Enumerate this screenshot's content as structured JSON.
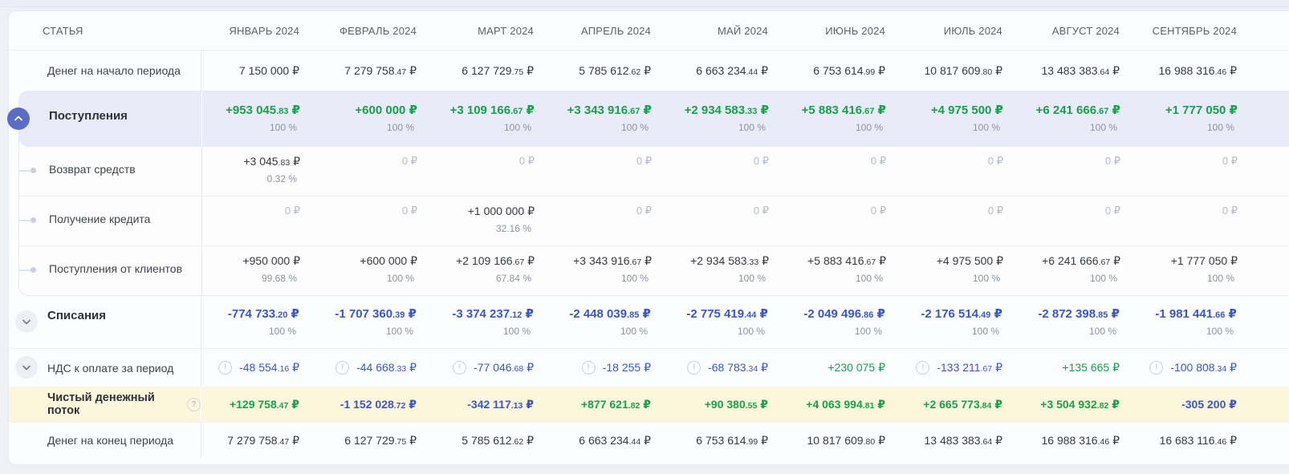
{
  "page": {
    "title_column": "СТАТЬЯ",
    "currency_symbol": "₽"
  },
  "columns": [
    "ЯНВАРЬ 2024",
    "ФЕВРАЛЬ 2024",
    "МАРТ 2024",
    "АПРЕЛЬ 2024",
    "МАЙ 2024",
    "ИЮНЬ 2024",
    "ИЮЛЬ 2024",
    "АВГУСТ 2024",
    "СЕНТЯБРЬ 2024"
  ],
  "colors": {
    "green": "#18a04b",
    "blue": "#3b57c4",
    "dark": "#363a40",
    "gray": "#b4bac6",
    "income_row_bg": "#e9ecf8",
    "net_row_bg": "#fcf6dd",
    "toggle_indigo": "#5b6cc5"
  },
  "rows": [
    {
      "id": "opening-balance",
      "label": "Денег на начало периода",
      "type": "plain",
      "cells": [
        {
          "a": "7 150 000 ₽",
          "c": "dark"
        },
        {
          "a": "7 279 758.47 ₽",
          "c": "dark"
        },
        {
          "a": "6 127 729.75 ₽",
          "c": "dark"
        },
        {
          "a": "5 785 612.62 ₽",
          "c": "dark"
        },
        {
          "a": "6 663 234.44 ₽",
          "c": "dark"
        },
        {
          "a": "6 753 614.99 ₽",
          "c": "dark"
        },
        {
          "a": "10 817 609.80 ₽",
          "c": "dark"
        },
        {
          "a": "13 483 383.64 ₽",
          "c": "dark"
        },
        {
          "a": "16 988 316.46 ₽",
          "c": "dark"
        }
      ]
    },
    {
      "id": "income",
      "label": "Поступления",
      "type": "group-expanded",
      "toggle_icon": "chevron-up-icon",
      "cells": [
        {
          "a": "+953 045.83 ₽",
          "p": "100 %",
          "c": "green"
        },
        {
          "a": "+600 000 ₽",
          "p": "100 %",
          "c": "green"
        },
        {
          "a": "+3 109 166.67 ₽",
          "p": "100 %",
          "c": "green"
        },
        {
          "a": "+3 343 916.67 ₽",
          "p": "100 %",
          "c": "green"
        },
        {
          "a": "+2 934 583.33 ₽",
          "p": "100 %",
          "c": "green"
        },
        {
          "a": "+5 883 416.67 ₽",
          "p": "100 %",
          "c": "green"
        },
        {
          "a": "+4 975 500 ₽",
          "p": "100 %",
          "c": "green"
        },
        {
          "a": "+6 241 666.67 ₽",
          "p": "100 %",
          "c": "green"
        },
        {
          "a": "+1 777 050 ₽",
          "p": "100 %",
          "c": "green"
        }
      ],
      "children": [
        {
          "id": "refunds",
          "label": "Возврат средств",
          "cells": [
            {
              "a": "+3 045.83 ₽",
              "p": "0.32 %",
              "c": "dark"
            },
            {
              "a": "0 ₽",
              "c": "gray"
            },
            {
              "a": "0 ₽",
              "c": "gray"
            },
            {
              "a": "0 ₽",
              "c": "gray"
            },
            {
              "a": "0 ₽",
              "c": "gray"
            },
            {
              "a": "0 ₽",
              "c": "gray"
            },
            {
              "a": "0 ₽",
              "c": "gray"
            },
            {
              "a": "0 ₽",
              "c": "gray"
            },
            {
              "a": "0 ₽",
              "c": "gray"
            }
          ]
        },
        {
          "id": "loan-received",
          "label": "Получение кредита",
          "cells": [
            {
              "a": "0 ₽",
              "c": "gray"
            },
            {
              "a": "0 ₽",
              "c": "gray"
            },
            {
              "a": "+1 000 000 ₽",
              "p": "32.16 %",
              "c": "dark"
            },
            {
              "a": "0 ₽",
              "c": "gray"
            },
            {
              "a": "0 ₽",
              "c": "gray"
            },
            {
              "a": "0 ₽",
              "c": "gray"
            },
            {
              "a": "0 ₽",
              "c": "gray"
            },
            {
              "a": "0 ₽",
              "c": "gray"
            },
            {
              "a": "0 ₽",
              "c": "gray"
            }
          ]
        },
        {
          "id": "client-income",
          "label": "Поступления от клиентов",
          "cells": [
            {
              "a": "+950 000 ₽",
              "p": "99.68 %",
              "c": "dark"
            },
            {
              "a": "+600 000 ₽",
              "p": "100 %",
              "c": "dark"
            },
            {
              "a": "+2 109 166.67 ₽",
              "p": "67.84 %",
              "c": "dark"
            },
            {
              "a": "+3 343 916.67 ₽",
              "p": "100 %",
              "c": "dark"
            },
            {
              "a": "+2 934 583.33 ₽",
              "p": "100 %",
              "c": "dark"
            },
            {
              "a": "+5 883 416.67 ₽",
              "p": "100 %",
              "c": "dark"
            },
            {
              "a": "+4 975 500 ₽",
              "p": "100 %",
              "c": "dark"
            },
            {
              "a": "+6 241 666.67 ₽",
              "p": "100 %",
              "c": "dark"
            },
            {
              "a": "+1 777 050 ₽",
              "p": "100 %",
              "c": "dark"
            }
          ]
        }
      ]
    },
    {
      "id": "expenses",
      "label": "Списания",
      "type": "group-collapsed",
      "toggle_icon": "chevron-down-icon",
      "cells": [
        {
          "a": "-774 733.20 ₽",
          "p": "100 %",
          "c": "blue"
        },
        {
          "a": "-1 707 360.39 ₽",
          "p": "100 %",
          "c": "blue"
        },
        {
          "a": "-3 374 237.12 ₽",
          "p": "100 %",
          "c": "blue"
        },
        {
          "a": "-2 448 039.85 ₽",
          "p": "100 %",
          "c": "blue"
        },
        {
          "a": "-2 775 419.44 ₽",
          "p": "100 %",
          "c": "blue"
        },
        {
          "a": "-2 049 496.86 ₽",
          "p": "100 %",
          "c": "blue"
        },
        {
          "a": "-2 176 514.49 ₽",
          "p": "100 %",
          "c": "blue"
        },
        {
          "a": "-2 872 398.85 ₽",
          "p": "100 %",
          "c": "blue"
        },
        {
          "a": "-1 981 441.66 ₽",
          "p": "100 %",
          "c": "blue"
        }
      ]
    },
    {
      "id": "vat-payable",
      "label": "НДС к оплате за период",
      "type": "vat",
      "toggle_icon": "chevron-down-icon",
      "cells": [
        {
          "a": "-48 554.16 ₽",
          "c": "blue",
          "w": true
        },
        {
          "a": "-44 668.33 ₽",
          "c": "blue",
          "w": true
        },
        {
          "a": "-77 046.68 ₽",
          "c": "blue",
          "w": true
        },
        {
          "a": "-18 255 ₽",
          "c": "blue",
          "w": true
        },
        {
          "a": "-68 783.34 ₽",
          "c": "blue",
          "w": true
        },
        {
          "a": "+230 075 ₽",
          "c": "green",
          "w": false
        },
        {
          "a": "-133 211.67 ₽",
          "c": "blue",
          "w": true
        },
        {
          "a": "+135 665 ₽",
          "c": "green",
          "w": false
        },
        {
          "a": "-100 808.34 ₽",
          "c": "blue",
          "w": true
        }
      ]
    },
    {
      "id": "net-cash-flow",
      "label": "Чистый денежный поток",
      "type": "net",
      "help_icon": "question-icon",
      "cells": [
        {
          "a": "+129 758.47 ₽",
          "c": "green"
        },
        {
          "a": "-1 152 028.72 ₽",
          "c": "blue"
        },
        {
          "a": "-342 117.13 ₽",
          "c": "blue"
        },
        {
          "a": "+877 621.82 ₽",
          "c": "green"
        },
        {
          "a": "+90 380.55 ₽",
          "c": "green"
        },
        {
          "a": "+4 063 994.81 ₽",
          "c": "green"
        },
        {
          "a": "+2 665 773.84 ₽",
          "c": "green"
        },
        {
          "a": "+3 504 932.82 ₽",
          "c": "green"
        },
        {
          "a": "-305 200 ₽",
          "c": "blue"
        }
      ]
    },
    {
      "id": "closing-balance",
      "label": "Денег на конец периода",
      "type": "closing",
      "cells": [
        {
          "a": "7 279 758.47 ₽",
          "c": "dark"
        },
        {
          "a": "6 127 729.75 ₽",
          "c": "dark"
        },
        {
          "a": "5 785 612.62 ₽",
          "c": "dark"
        },
        {
          "a": "6 663 234.44 ₽",
          "c": "dark"
        },
        {
          "a": "6 753 614.99 ₽",
          "c": "dark"
        },
        {
          "a": "10 817 609.80 ₽",
          "c": "dark"
        },
        {
          "a": "13 483 383.64 ₽",
          "c": "dark"
        },
        {
          "a": "16 988 316.46 ₽",
          "c": "dark"
        },
        {
          "a": "16 683 116.46 ₽",
          "c": "dark"
        }
      ]
    }
  ]
}
